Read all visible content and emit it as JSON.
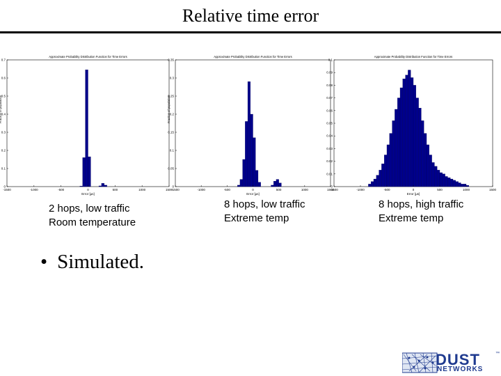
{
  "slide": {
    "title": "Relative time error",
    "bullet": "Simulated."
  },
  "captions": [
    {
      "line1": "2 hops, low traffic",
      "line2": "Room temperature"
    },
    {
      "line1": "8 hops, low traffic",
      "line2": "Extreme temp"
    },
    {
      "line1": "8 hops, high traffic",
      "line2": "Extreme temp"
    }
  ],
  "logo": {
    "word1": "DUST",
    "word2": "NETWORKS",
    "tm": "™"
  },
  "colors": {
    "bar": "#00008b",
    "bar_edge": "#000050"
  },
  "chart_data": [
    {
      "type": "bar",
      "title": "Approximate Probability Distribution Function for Time Errors",
      "xlabel": "Error [µs]",
      "ylabel": "Fraction of population",
      "xlim": [
        -1500,
        1500
      ],
      "ylim": [
        0,
        0.7
      ],
      "xticks": [
        -1500,
        -1000,
        -500,
        0,
        500,
        1000,
        1500
      ],
      "yticks": [
        0,
        0.1,
        0.2,
        0.3,
        0.4,
        0.5,
        0.6,
        0.7
      ],
      "bin_width": 50,
      "bins": [
        {
          "x": -150,
          "y": 0.003
        },
        {
          "x": -100,
          "y": 0.16
        },
        {
          "x": -50,
          "y": 0.645
        },
        {
          "x": 0,
          "y": 0.165
        },
        {
          "x": 200,
          "y": 0.004
        },
        {
          "x": 250,
          "y": 0.018
        },
        {
          "x": 300,
          "y": 0.008
        }
      ]
    },
    {
      "type": "bar",
      "title": "Approximate Probability Distribution Function for Time Errors",
      "xlabel": "Error [µs]",
      "ylabel": "Fraction of population",
      "xlim": [
        -1500,
        1500
      ],
      "ylim": [
        0,
        0.35
      ],
      "xticks": [
        -1500,
        -1000,
        -500,
        0,
        500,
        1000,
        1500
      ],
      "yticks": [
        0,
        0.05,
        0.1,
        0.15,
        0.2,
        0.25,
        0.3,
        0.35
      ],
      "bin_width": 50,
      "bins": [
        {
          "x": -300,
          "y": 0.004
        },
        {
          "x": -250,
          "y": 0.02
        },
        {
          "x": -200,
          "y": 0.075
        },
        {
          "x": -150,
          "y": 0.18
        },
        {
          "x": -100,
          "y": 0.29
        },
        {
          "x": -50,
          "y": 0.2
        },
        {
          "x": 0,
          "y": 0.135
        },
        {
          "x": 50,
          "y": 0.045
        },
        {
          "x": 100,
          "y": 0.012
        },
        {
          "x": 350,
          "y": 0.004
        },
        {
          "x": 400,
          "y": 0.015
        },
        {
          "x": 450,
          "y": 0.02
        },
        {
          "x": 500,
          "y": 0.01
        }
      ]
    },
    {
      "type": "bar",
      "title": "Approximate Probability Distribution Function for Time Errors",
      "xlabel": "Error [µs]",
      "ylabel": "",
      "xlim": [
        -1500,
        1500
      ],
      "ylim": [
        0,
        0.1
      ],
      "xticks": [
        -1500,
        -1000,
        -500,
        0,
        500,
        1000,
        1500
      ],
      "yticks": [
        0,
        0.01,
        0.02,
        0.03,
        0.04,
        0.05,
        0.06,
        0.07,
        0.08,
        0.09,
        0.1
      ],
      "bin_width": 50,
      "bins": [
        {
          "x": -850,
          "y": 0.002
        },
        {
          "x": -800,
          "y": 0.004
        },
        {
          "x": -750,
          "y": 0.006
        },
        {
          "x": -700,
          "y": 0.009
        },
        {
          "x": -650,
          "y": 0.013
        },
        {
          "x": -600,
          "y": 0.018
        },
        {
          "x": -550,
          "y": 0.025
        },
        {
          "x": -500,
          "y": 0.033
        },
        {
          "x": -450,
          "y": 0.042
        },
        {
          "x": -400,
          "y": 0.052
        },
        {
          "x": -350,
          "y": 0.061
        },
        {
          "x": -300,
          "y": 0.07
        },
        {
          "x": -250,
          "y": 0.078
        },
        {
          "x": -200,
          "y": 0.085
        },
        {
          "x": -150,
          "y": 0.088
        },
        {
          "x": -100,
          "y": 0.092
        },
        {
          "x": -50,
          "y": 0.086
        },
        {
          "x": 0,
          "y": 0.08
        },
        {
          "x": 50,
          "y": 0.07
        },
        {
          "x": 100,
          "y": 0.062
        },
        {
          "x": 150,
          "y": 0.052
        },
        {
          "x": 200,
          "y": 0.042
        },
        {
          "x": 250,
          "y": 0.033
        },
        {
          "x": 300,
          "y": 0.025
        },
        {
          "x": 350,
          "y": 0.019
        },
        {
          "x": 400,
          "y": 0.016
        },
        {
          "x": 450,
          "y": 0.013
        },
        {
          "x": 500,
          "y": 0.011
        },
        {
          "x": 550,
          "y": 0.01
        },
        {
          "x": 600,
          "y": 0.008
        },
        {
          "x": 650,
          "y": 0.007
        },
        {
          "x": 700,
          "y": 0.006
        },
        {
          "x": 750,
          "y": 0.005
        },
        {
          "x": 800,
          "y": 0.004
        },
        {
          "x": 850,
          "y": 0.003
        },
        {
          "x": 900,
          "y": 0.002
        },
        {
          "x": 950,
          "y": 0.002
        },
        {
          "x": 1000,
          "y": 0.001
        }
      ]
    }
  ]
}
